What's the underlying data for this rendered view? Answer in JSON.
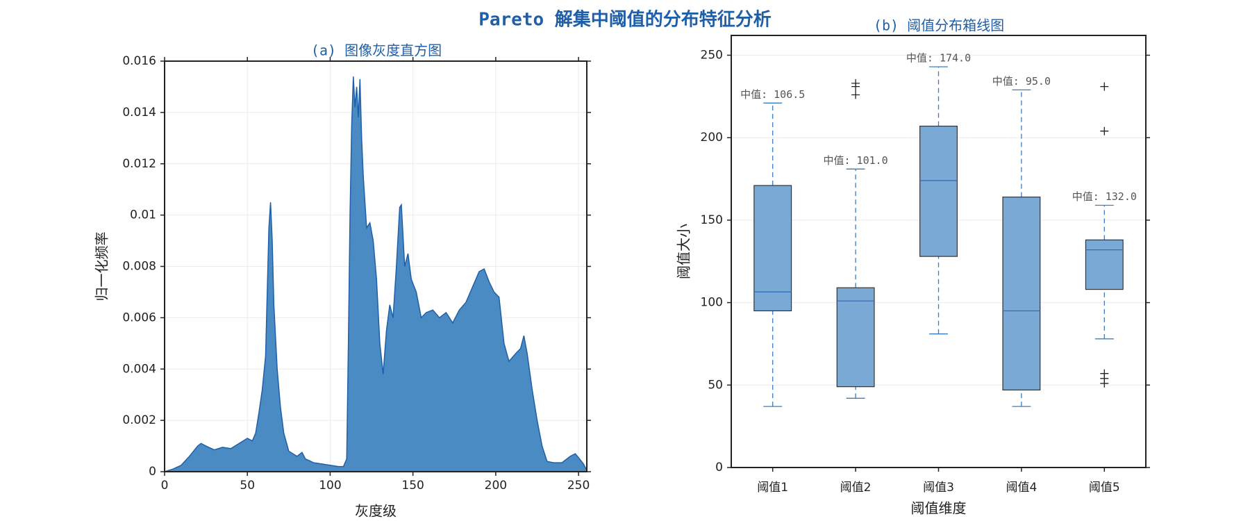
{
  "title": "Pareto 解集中阈值的分布特征分析",
  "chart_data": [
    {
      "type": "area",
      "title": "(a) 图像灰度直方图",
      "x_label": "灰度级",
      "y_label": "归一化频率",
      "x": [
        0,
        5,
        10,
        15,
        20,
        22,
        25,
        30,
        35,
        40,
        45,
        50,
        53,
        55,
        57,
        59,
        61,
        62,
        63,
        64,
        65,
        66,
        68,
        70,
        72,
        75,
        80,
        83,
        85,
        90,
        95,
        100,
        105,
        108,
        110,
        111,
        112,
        113,
        114,
        115,
        116,
        117,
        118,
        119,
        120,
        122,
        124,
        126,
        128,
        130,
        132,
        134,
        136,
        138,
        140,
        142,
        143,
        145,
        147,
        149,
        152,
        155,
        158,
        162,
        166,
        170,
        174,
        178,
        182,
        186,
        190,
        193,
        196,
        199,
        202,
        205,
        208,
        212,
        215,
        217,
        219,
        222,
        225,
        228,
        231,
        235,
        240,
        245,
        248,
        250,
        253,
        255
      ],
      "values": [
        0,
        0.0001,
        0.00025,
        0.0006,
        0.001,
        0.0011,
        0.001,
        0.00085,
        0.00095,
        0.0009,
        0.0011,
        0.0013,
        0.0012,
        0.0015,
        0.0023,
        0.0032,
        0.0045,
        0.007,
        0.0095,
        0.0105,
        0.009,
        0.0065,
        0.004,
        0.0025,
        0.0015,
        0.0008,
        0.0006,
        0.00075,
        0.0005,
        0.00035,
        0.0003,
        0.00025,
        0.0002,
        0.0002,
        0.0005,
        0.005,
        0.01,
        0.0135,
        0.0154,
        0.0142,
        0.015,
        0.0138,
        0.0153,
        0.013,
        0.0115,
        0.0095,
        0.0097,
        0.009,
        0.0075,
        0.005,
        0.0038,
        0.0055,
        0.0065,
        0.006,
        0.008,
        0.0103,
        0.0104,
        0.008,
        0.0085,
        0.0075,
        0.007,
        0.006,
        0.0062,
        0.0063,
        0.006,
        0.0062,
        0.0058,
        0.0063,
        0.0066,
        0.0072,
        0.0078,
        0.0079,
        0.0074,
        0.007,
        0.0068,
        0.005,
        0.0043,
        0.0046,
        0.0048,
        0.0053,
        0.0046,
        0.0032,
        0.002,
        0.001,
        0.0004,
        0.00035,
        0.00035,
        0.0006,
        0.0007,
        0.00055,
        0.0003,
        5e-05
      ],
      "color": "#4a8bc4",
      "edge_color": "#1f5fa8",
      "xlim": [
        0,
        255
      ],
      "xticks": [
        0,
        50,
        100,
        150,
        200,
        250
      ],
      "ylim": [
        0,
        0.016
      ],
      "yticks": [
        0,
        0.002,
        0.004,
        0.006,
        0.008,
        0.01,
        0.012,
        0.014,
        0.016
      ],
      "grid": true
    },
    {
      "type": "box",
      "title": "(b) 阈值分布箱线图",
      "x_label": "阈值维度",
      "y_label": "阈值大小",
      "categories": [
        "阈值1",
        "阈值2",
        "阈值3",
        "阈值4",
        "阈值5"
      ],
      "boxes": [
        {
          "whislo": 37,
          "q1": 95,
          "med": 106.5,
          "q3": 171,
          "whishi": 221,
          "fliers": [],
          "med_label": "中值: 106.5"
        },
        {
          "whislo": 42,
          "q1": 49,
          "med": 101,
          "q3": 109,
          "whishi": 181,
          "fliers": [
            226,
            231,
            233
          ],
          "med_label": "中值: 101.0"
        },
        {
          "whislo": 81,
          "q1": 128,
          "med": 174,
          "q3": 207,
          "whishi": 243,
          "fliers": [],
          "med_label": "中值: 174.0"
        },
        {
          "whislo": 37,
          "q1": 47,
          "med": 95,
          "q3": 164,
          "whishi": 229,
          "fliers": [],
          "med_label": "中值: 95.0"
        },
        {
          "whislo": 78,
          "q1": 108,
          "med": 132,
          "q3": 138,
          "whishi": 159,
          "fliers": [
            51,
            54,
            57,
            204,
            231
          ],
          "med_label": "中值: 132.0"
        }
      ],
      "color": "#7aa9d6",
      "median_color": "#3070b8",
      "whisker_color": "#3a7cc0",
      "ylim": [
        0,
        262
      ],
      "yticks": [
        0,
        50,
        100,
        150,
        200,
        250
      ],
      "grid": true
    }
  ]
}
